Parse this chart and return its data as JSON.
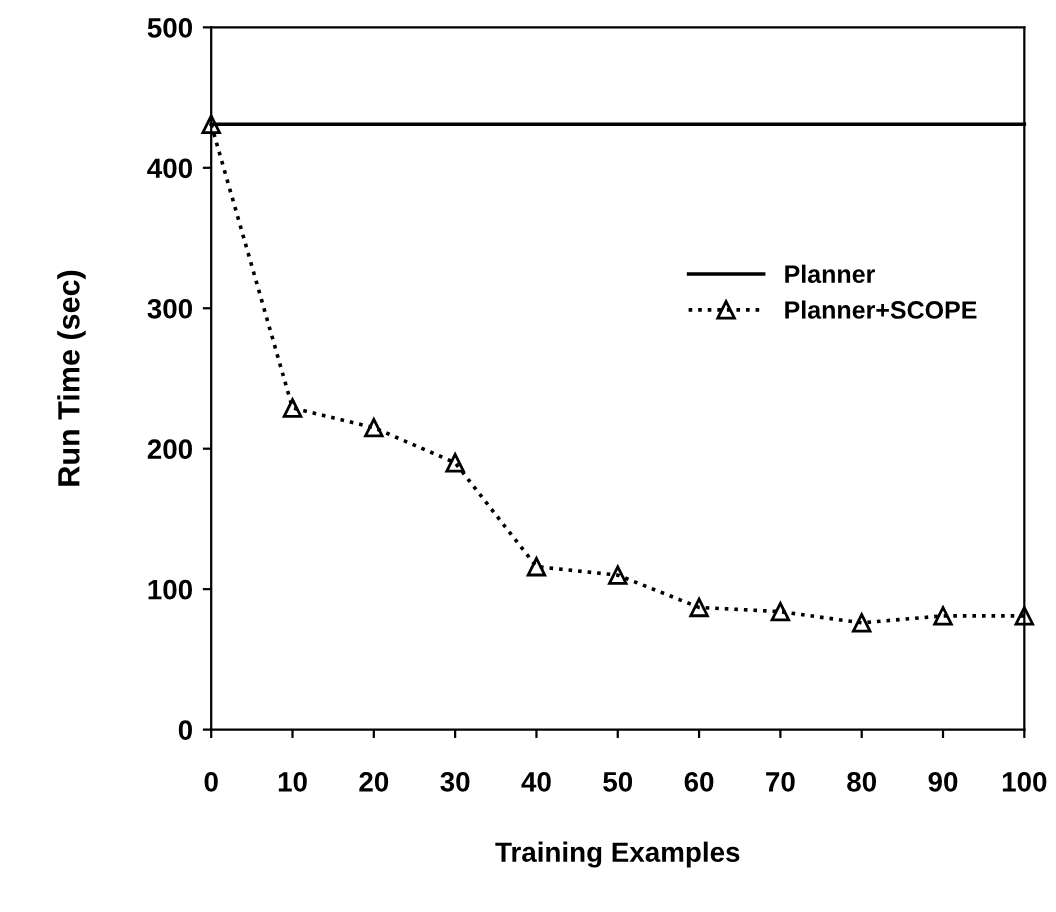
{
  "chart_data": {
    "type": "line",
    "xlabel": "Training Examples",
    "ylabel": "Run Time (sec)",
    "xlim": [
      0,
      100
    ],
    "xticks": [
      0,
      10,
      20,
      30,
      40,
      50,
      60,
      70,
      80,
      90,
      100
    ],
    "ylim": [
      0,
      500
    ],
    "yticks": [
      0,
      100,
      200,
      300,
      400,
      500
    ],
    "grid": false,
    "legend": "right",
    "series": [
      {
        "name": "Planner",
        "color": "#000000",
        "x": [
          0,
          100
        ],
        "values": [
          431,
          431
        ],
        "line_style": "solid"
      },
      {
        "name": "Planner+SCOPE",
        "color": "#000000",
        "x": [
          0,
          10,
          20,
          30,
          40,
          50,
          60,
          70,
          80,
          90,
          100
        ],
        "values": [
          431,
          229,
          215,
          190,
          116,
          110,
          87,
          84,
          76,
          81,
          81
        ],
        "line_style": "dotted",
        "marker": "triangle"
      }
    ]
  }
}
